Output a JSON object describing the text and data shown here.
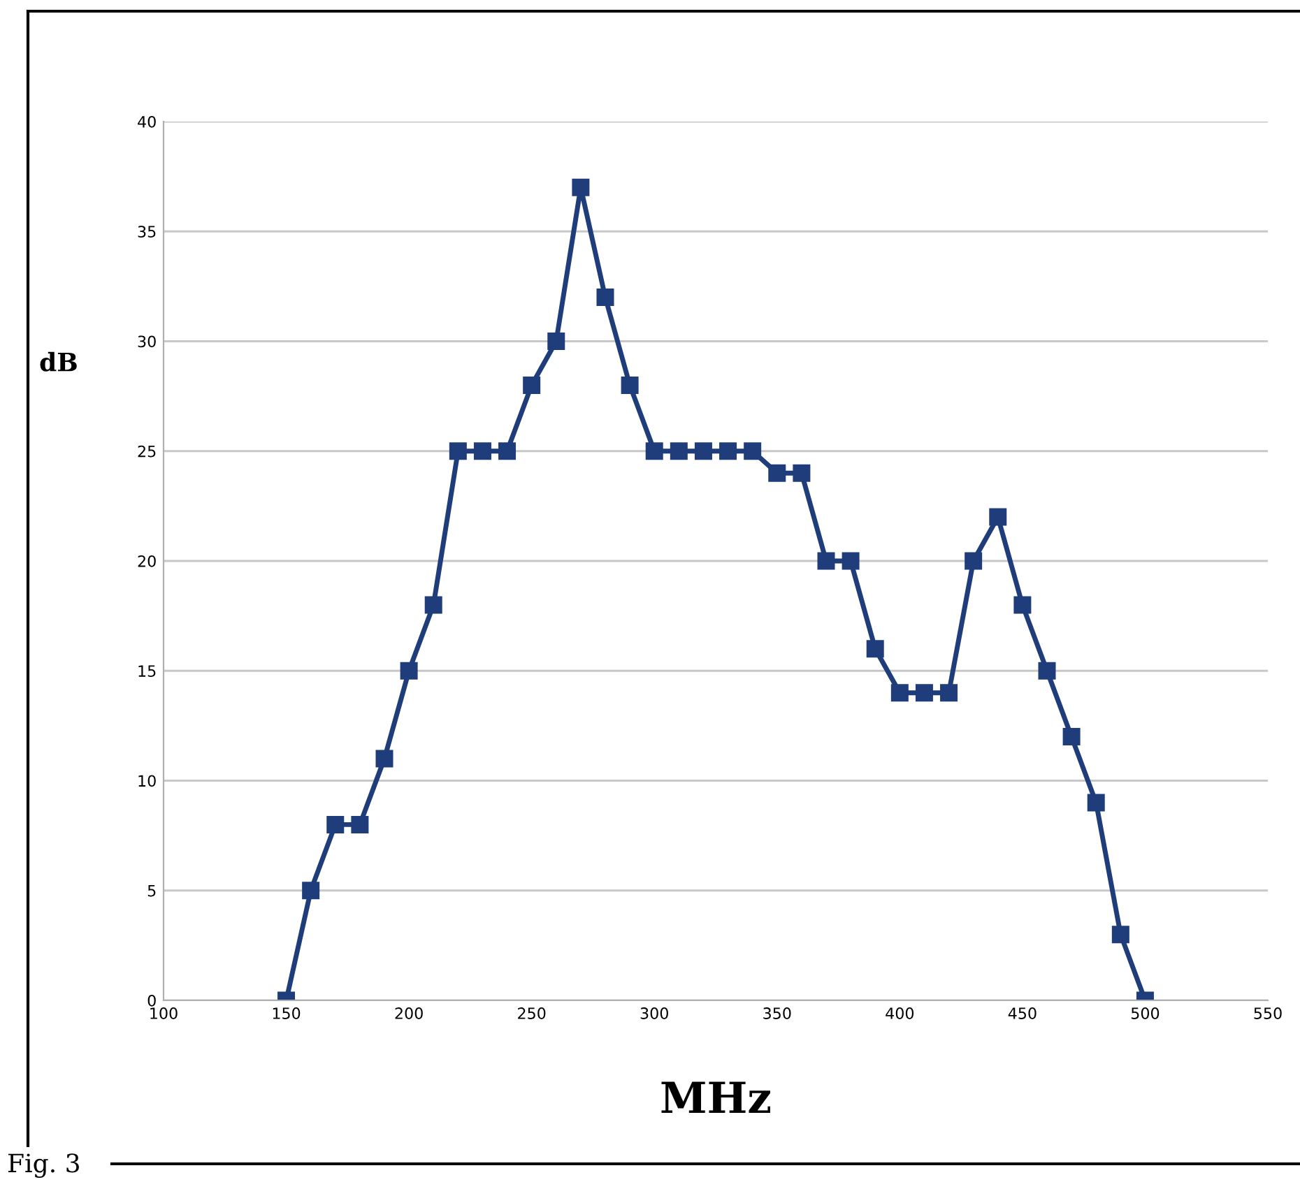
{
  "chart_data": {
    "type": "line",
    "xlabel": "MHz",
    "ylabel": "dB",
    "x": [
      150,
      160,
      170,
      180,
      190,
      200,
      210,
      220,
      230,
      240,
      250,
      260,
      270,
      280,
      290,
      300,
      310,
      320,
      330,
      340,
      350,
      360,
      370,
      380,
      390,
      400,
      410,
      420,
      430,
      440,
      450,
      460,
      470,
      480,
      490,
      500
    ],
    "series": [
      {
        "color": "#1f3d7a",
        "values": [
          0,
          5,
          8,
          8,
          11,
          15,
          18,
          25,
          25,
          25,
          28,
          30,
          37,
          32,
          28,
          25,
          25,
          25,
          25,
          25,
          24,
          24,
          20,
          20,
          16,
          14,
          14,
          14,
          20,
          22,
          18,
          15,
          12,
          9,
          3,
          0
        ]
      }
    ],
    "xlim": [
      100,
      550
    ],
    "xticks": [
      100,
      150,
      200,
      250,
      300,
      350,
      400,
      450,
      500,
      550
    ],
    "ylim": [
      0,
      40
    ],
    "yticks": [
      0,
      5,
      10,
      15,
      20,
      25,
      30,
      35,
      40
    ],
    "grid": "y",
    "marker": "square",
    "line_style": "solid",
    "legend": false,
    "annotations": [
      "Fig. 3"
    ]
  }
}
